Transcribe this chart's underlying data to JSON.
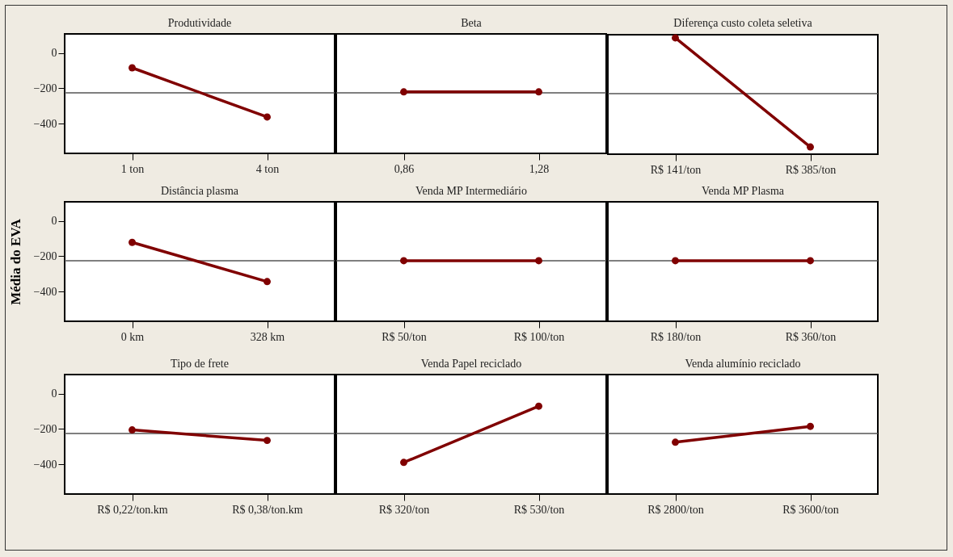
{
  "chart_data": [
    {
      "type": "line",
      "title": "Produtividade",
      "categories": [
        "1 ton",
        "4 ton"
      ],
      "values": [
        -83,
        -363
      ],
      "color": "#800000",
      "marker": "circle",
      "ylim": [
        -570,
        110
      ],
      "yticks": [
        0,
        -200,
        -400
      ],
      "ref_lines": [
        {
          "axis": "y",
          "value": -225,
          "color": "#555555"
        }
      ]
    },
    {
      "type": "line",
      "title": "Beta",
      "categories": [
        "0,86",
        "1,28"
      ],
      "values": [
        -220,
        -220
      ],
      "color": "#800000",
      "marker": "circle",
      "ylim": [
        -570,
        110
      ],
      "yticks": [
        0,
        -200,
        -400
      ],
      "tick_labels": "x",
      "ref_lines": [
        {
          "axis": "y",
          "value": -225,
          "color": "#555555"
        }
      ]
    },
    {
      "type": "line",
      "title": "Diferença custo coleta seletiva",
      "categories": [
        "R$ 141/ton",
        "R$ 385/ton"
      ],
      "values": [
        92,
        -529
      ],
      "color": "#800000",
      "marker": "circle",
      "ylim": [
        -570,
        110
      ],
      "yticks": [
        0,
        -200,
        -400
      ],
      "tick_labels": "x",
      "ref_lines": [
        {
          "axis": "y",
          "value": -225,
          "color": "#555555"
        }
      ]
    },
    {
      "type": "line",
      "title": "Distância plasma",
      "ylabel": "Média do EVA",
      "categories": [
        "0 km",
        "328 km"
      ],
      "values": [
        -121,
        -344
      ],
      "color": "#800000",
      "marker": "circle",
      "ylim": [
        -570,
        110
      ],
      "yticks": [
        0,
        -200,
        -400
      ],
      "ref_lines": [
        {
          "axis": "y",
          "value": -225,
          "color": "#555555"
        }
      ]
    },
    {
      "type": "line",
      "title": "Venda MP Intermediário",
      "categories": [
        "R$ 50/ton",
        "R$ 100/ton"
      ],
      "values": [
        -225,
        -225
      ],
      "color": "#800000",
      "marker": "circle",
      "ylim": [
        -570,
        110
      ],
      "yticks": [
        0,
        -200,
        -400
      ],
      "tick_labels": "x",
      "ref_lines": [
        {
          "axis": "y",
          "value": -225,
          "color": "#555555"
        }
      ]
    },
    {
      "type": "line",
      "title": "Venda MP Plasma",
      "categories": [
        "R$ 180/ton",
        "R$ 360/ton"
      ],
      "values": [
        -225,
        -225
      ],
      "color": "#800000",
      "marker": "circle",
      "ylim": [
        -570,
        110
      ],
      "yticks": [
        0,
        -200,
        -400
      ],
      "tick_labels": "x",
      "ref_lines": [
        {
          "axis": "y",
          "value": -225,
          "color": "#555555"
        }
      ]
    },
    {
      "type": "line",
      "title": "Tipo de frete",
      "categories": [
        "R$ 0,22/ton.km",
        "R$ 0,38/ton.km"
      ],
      "values": [
        -205,
        -265
      ],
      "color": "#800000",
      "marker": "circle",
      "ylim": [
        -570,
        110
      ],
      "yticks": [
        0,
        -200,
        -400
      ],
      "ref_lines": [
        {
          "axis": "y",
          "value": -225,
          "color": "#555555"
        }
      ]
    },
    {
      "type": "line",
      "title": "Venda Papel reciclado",
      "categories": [
        "R$ 320/ton",
        "R$ 530/ton"
      ],
      "values": [
        -390,
        -70
      ],
      "color": "#800000",
      "marker": "circle",
      "ylim": [
        -570,
        110
      ],
      "yticks": [
        0,
        -200,
        -400
      ],
      "tick_labels": "x",
      "ref_lines": [
        {
          "axis": "y",
          "value": -225,
          "color": "#555555"
        }
      ]
    },
    {
      "type": "line",
      "title": "Venda alumínio reciclado",
      "categories": [
        "R$ 2800/ton",
        "R$ 3600/ton"
      ],
      "values": [
        -275,
        -185
      ],
      "color": "#800000",
      "marker": "circle",
      "ylim": [
        -570,
        110
      ],
      "yticks": [
        0,
        -200,
        -400
      ],
      "tick_labels": "x",
      "ref_lines": [
        {
          "axis": "y",
          "value": -225,
          "color": "#555555"
        }
      ]
    }
  ]
}
